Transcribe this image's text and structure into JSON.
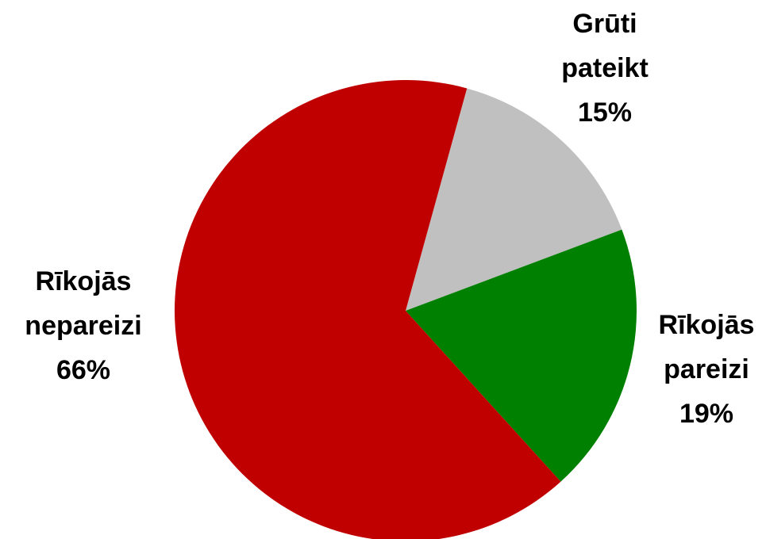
{
  "chart_data": {
    "type": "pie",
    "categories": [
      "Grūti pateikt",
      "Rīkojās pareizi",
      "Rīkojās nepareizi"
    ],
    "values": [
      15,
      19,
      66
    ],
    "value_labels": [
      "15%",
      "19%",
      "66%"
    ],
    "colors": [
      "#c0c0c0",
      "#008000",
      "#c00000"
    ]
  }
}
